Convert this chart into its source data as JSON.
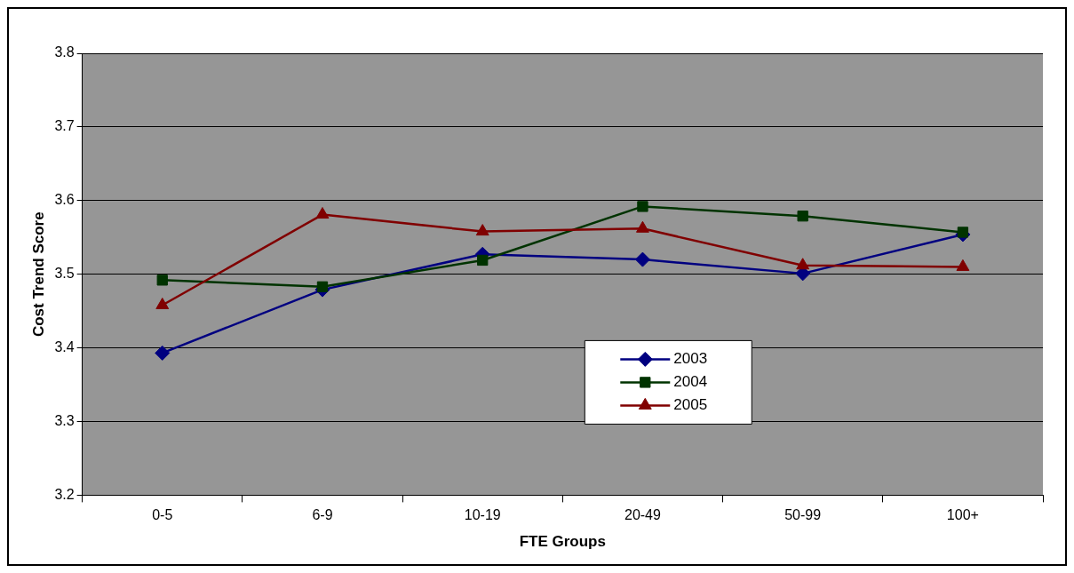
{
  "chart_data": {
    "type": "line",
    "xlabel": "FTE Groups",
    "ylabel": "Cost Trend Score",
    "categories": [
      "0-5",
      "6-9",
      "10-19",
      "20-49",
      "50-99",
      "100+"
    ],
    "series": [
      {
        "name": "2003",
        "color": "#000080",
        "marker": "diamond",
        "values": [
          3.393,
          3.479,
          3.527,
          3.52,
          3.501,
          3.554
        ]
      },
      {
        "name": "2004",
        "color": "#003300",
        "marker": "square",
        "values": [
          3.492,
          3.483,
          3.519,
          3.592,
          3.579,
          3.557
        ]
      },
      {
        "name": "2005",
        "color": "#800000",
        "marker": "triangle",
        "values": [
          3.458,
          3.581,
          3.558,
          3.562,
          3.512,
          3.51
        ]
      }
    ],
    "ylim": [
      3.2,
      3.8
    ],
    "yticks": [
      3.2,
      3.3,
      3.4,
      3.5,
      3.6,
      3.7,
      3.8
    ],
    "grid": "y",
    "legend": "bottom"
  }
}
